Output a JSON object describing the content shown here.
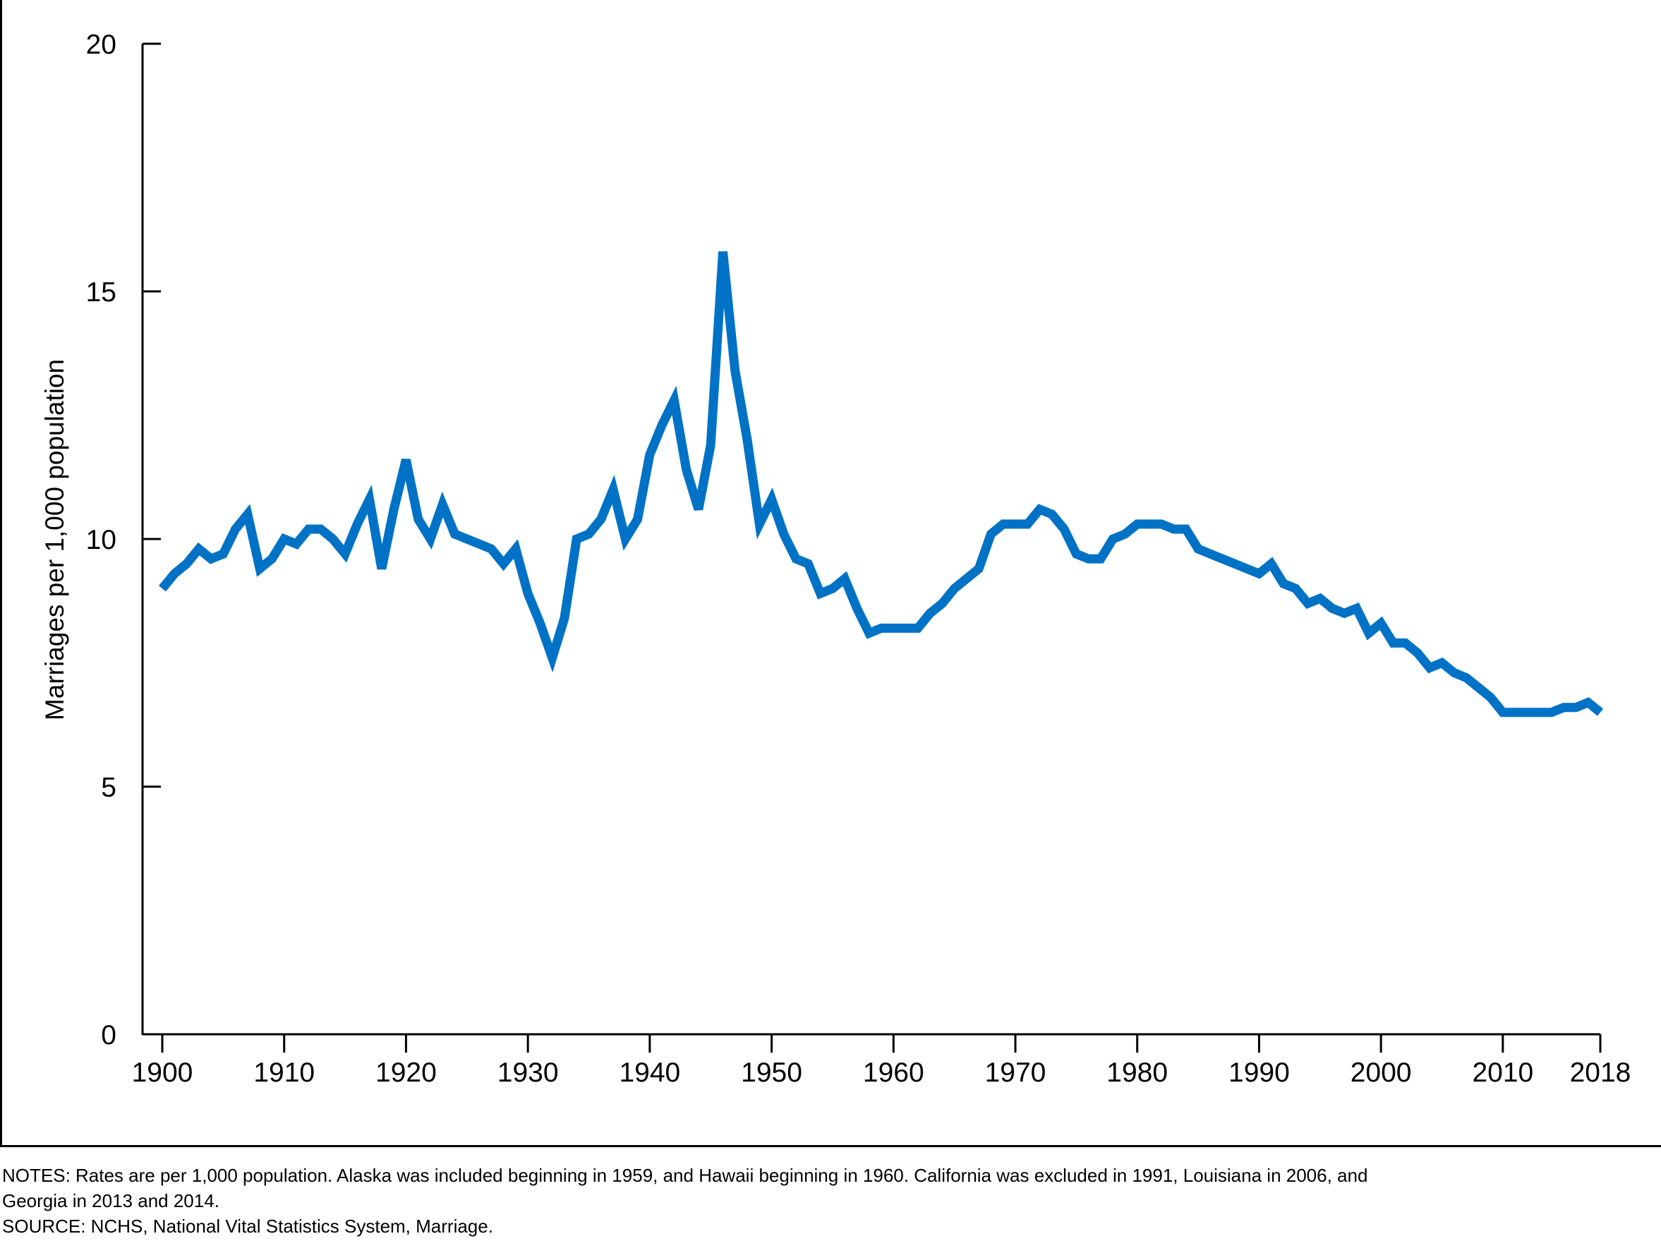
{
  "chart_data": {
    "type": "line",
    "title": "",
    "xlabel": "",
    "ylabel": "Marriages per 1,000 population",
    "xlim": [
      1900,
      2018
    ],
    "ylim": [
      0,
      20
    ],
    "x_ticks": [
      "1900",
      "1910",
      "1920",
      "1930",
      "1940",
      "1950",
      "1960",
      "1970",
      "1980",
      "1990",
      "2000",
      "2010",
      "2018"
    ],
    "y_ticks": [
      "0",
      "5",
      "10",
      "15",
      "20"
    ],
    "grid": false,
    "line_color": "#0072c6",
    "series": [
      {
        "x": [
          1900,
          1901,
          1902,
          1903,
          1904,
          1905,
          1906,
          1907,
          1908,
          1909,
          1910,
          1911,
          1912,
          1913,
          1914,
          1915,
          1916,
          1917,
          1918,
          1919,
          1920,
          1921,
          1922,
          1923,
          1924,
          1925,
          1926,
          1927,
          1928,
          1929,
          1930,
          1931,
          1932,
          1933,
          1934,
          1935,
          1936,
          1937,
          1938,
          1939,
          1940,
          1941,
          1942,
          1943,
          1944,
          1945,
          1946,
          1947,
          1948,
          1949,
          1950,
          1951,
          1952,
          1953,
          1954,
          1955,
          1956,
          1957,
          1958,
          1959,
          1960,
          1961,
          1962,
          1963,
          1964,
          1965,
          1966,
          1967,
          1968,
          1969,
          1970,
          1971,
          1972,
          1973,
          1974,
          1975,
          1976,
          1977,
          1978,
          1979,
          1980,
          1981,
          1982,
          1983,
          1984,
          1985,
          1986,
          1987,
          1988,
          1989,
          1990,
          1991,
          1992,
          1993,
          1994,
          1995,
          1996,
          1997,
          1998,
          1999,
          2000,
          2001,
          2002,
          2003,
          2004,
          2005,
          2006,
          2007,
          2008,
          2009,
          2010,
          2011,
          2012,
          2013,
          2014,
          2015,
          2016,
          2017,
          2018
        ],
        "values": [
          9.0,
          9.3,
          9.5,
          9.8,
          9.6,
          9.7,
          10.2,
          10.5,
          9.4,
          9.6,
          10.0,
          9.9,
          10.2,
          10.2,
          10.0,
          9.7,
          10.3,
          10.8,
          9.4,
          10.6,
          11.6,
          10.4,
          10.0,
          10.7,
          10.1,
          10.0,
          9.9,
          9.8,
          9.5,
          9.8,
          8.9,
          8.3,
          7.6,
          8.4,
          10.0,
          10.1,
          10.4,
          11.0,
          10.0,
          10.4,
          11.7,
          12.3,
          12.8,
          11.4,
          10.6,
          11.9,
          15.8,
          13.4,
          12.0,
          10.3,
          10.8,
          10.1,
          9.6,
          9.5,
          8.9,
          9.0,
          9.2,
          8.6,
          8.1,
          8.2,
          8.2,
          8.2,
          8.2,
          8.5,
          8.7,
          9.0,
          9.2,
          9.4,
          10.1,
          10.3,
          10.3,
          10.3,
          10.6,
          10.5,
          10.2,
          9.7,
          9.6,
          9.6,
          10.0,
          10.1,
          10.3,
          10.3,
          10.3,
          10.2,
          10.2,
          9.8,
          9.7,
          9.6,
          9.5,
          9.4,
          9.3,
          9.5,
          9.1,
          9.0,
          8.7,
          8.8,
          8.6,
          8.5,
          8.6,
          8.1,
          8.3,
          7.9,
          7.9,
          7.7,
          7.4,
          7.5,
          7.3,
          7.2,
          7.0,
          6.8,
          6.5,
          6.5,
          6.5,
          6.5,
          6.5,
          6.6,
          6.6,
          6.7,
          6.5
        ]
      }
    ]
  },
  "footer": {
    "notes_line1": "NOTES: Rates are per 1,000 population. Alaska was included beginning in 1959, and Hawaii beginning in 1960. California was excluded in 1991, Louisiana in 2006, and",
    "notes_line2": "Georgia in 2013 and 2014.",
    "source": "SOURCE: NCHS, National Vital Statistics System, Marriage."
  }
}
